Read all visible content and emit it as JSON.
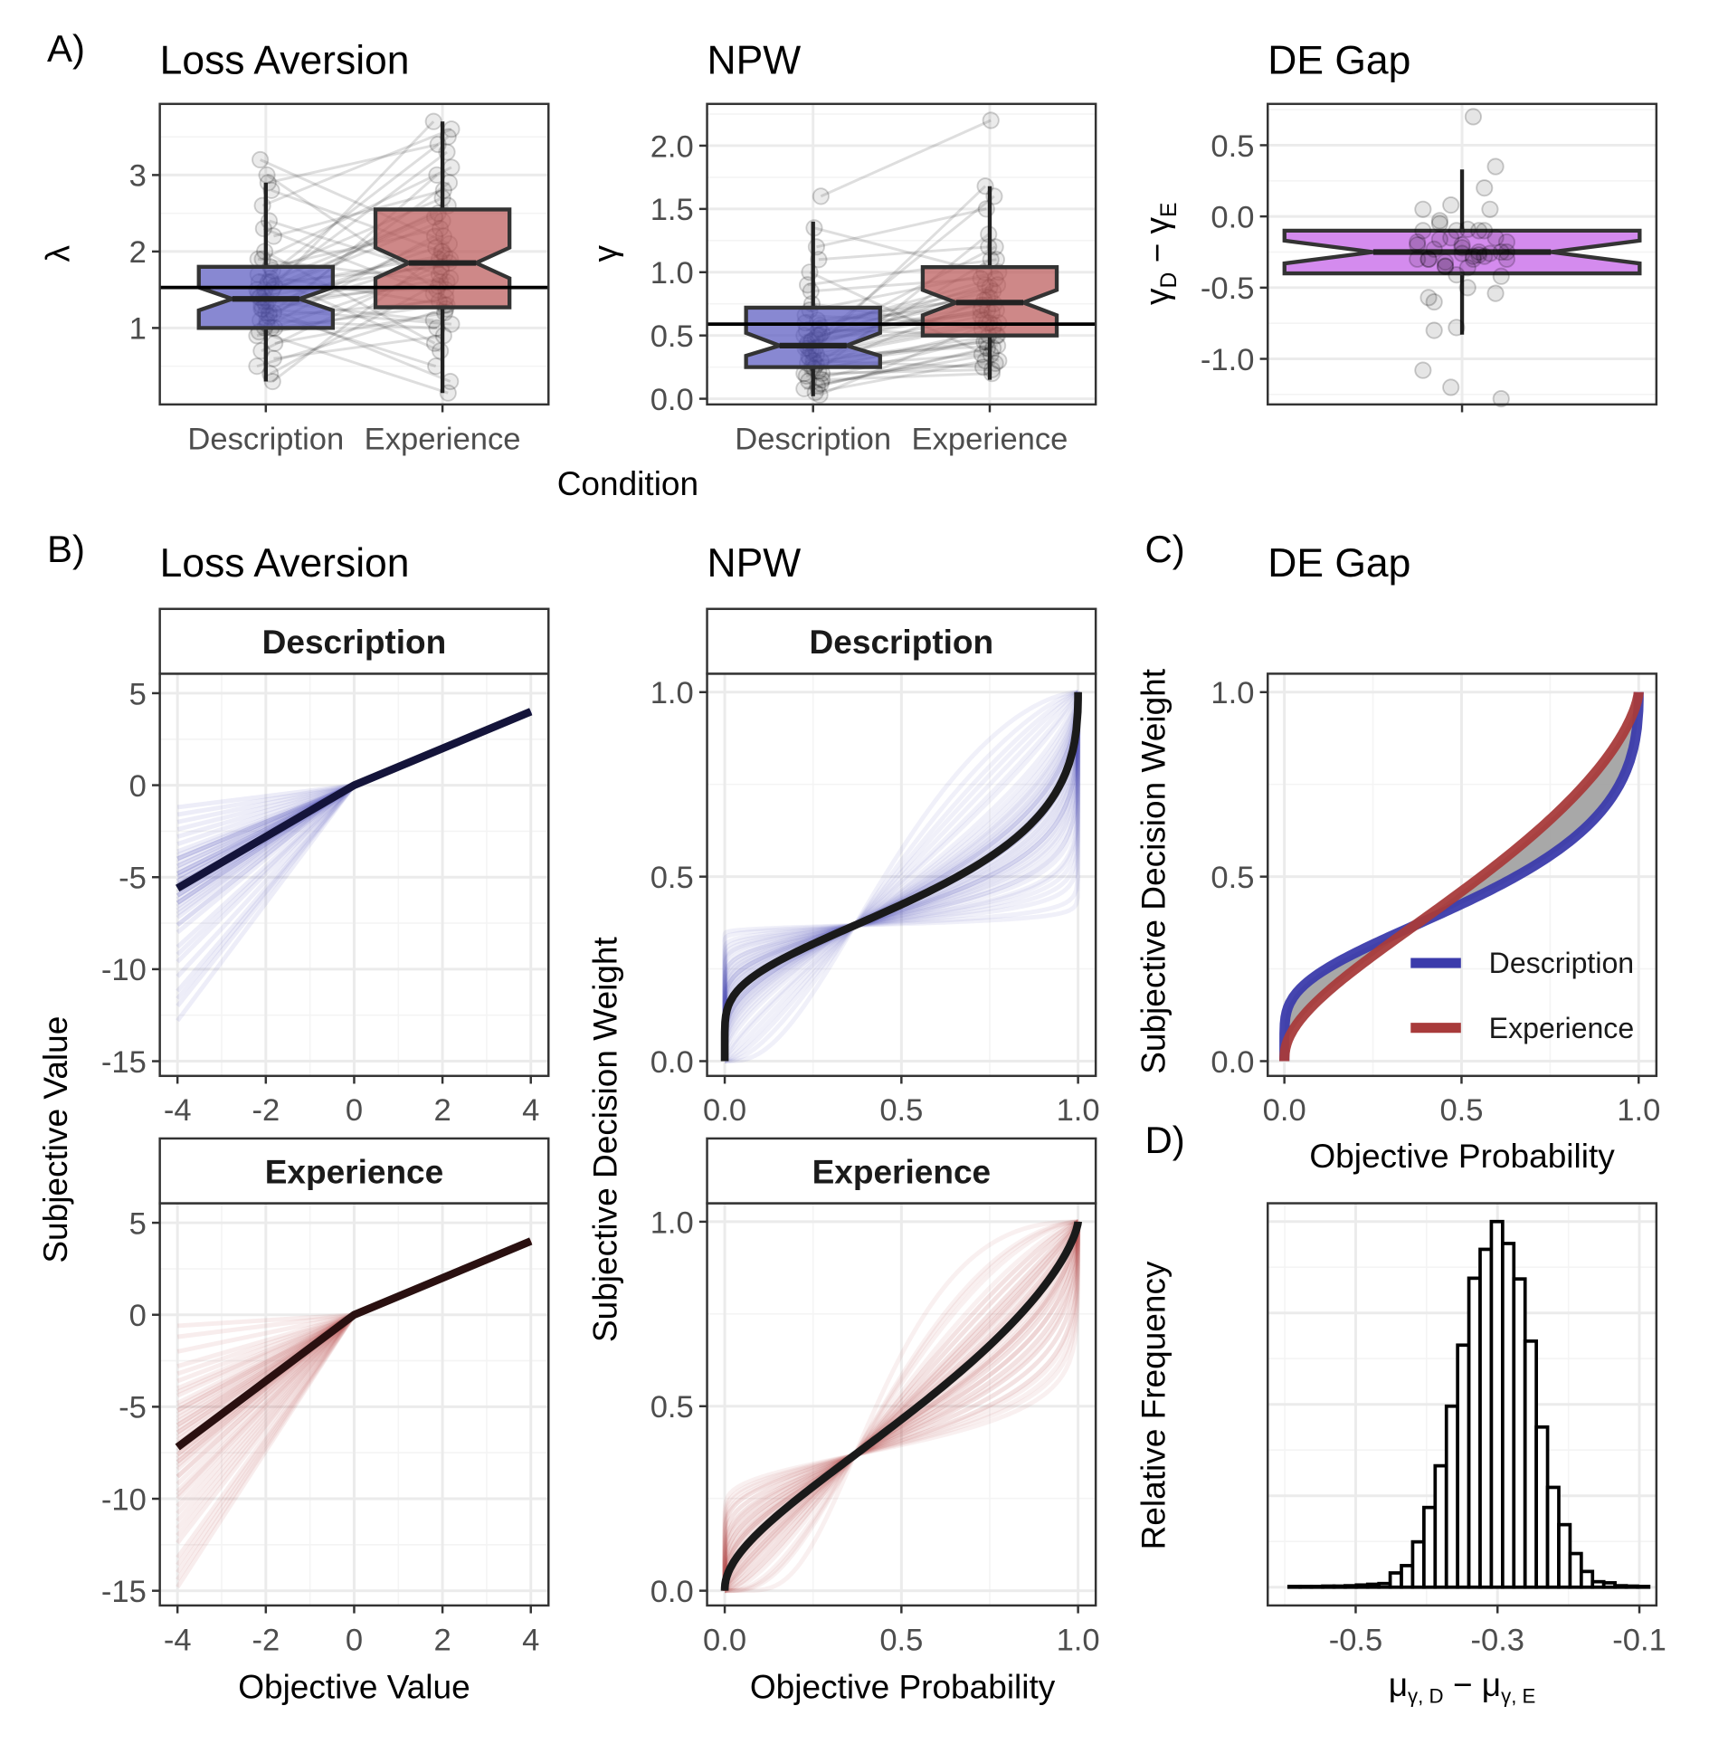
{
  "panel_labels": {
    "a": "A)",
    "b": "B)",
    "c": "C)",
    "d": "D)"
  },
  "chart_data": [
    {
      "id": "A1",
      "type": "box",
      "title": "Loss Aversion",
      "xlabel": "Condition",
      "ylabel": "λ",
      "categories": [
        "Description",
        "Experience"
      ],
      "ylim": [
        0,
        3.93
      ],
      "yticks": [
        1,
        2,
        3
      ],
      "yticklabels": [
        "1",
        "2",
        "3"
      ],
      "hline": 1.53,
      "boxes": [
        {
          "category": "Description",
          "color": "#5a5ac0",
          "whisker_low": 0.3,
          "q1": 1.0,
          "median": 1.38,
          "q3": 1.8,
          "whisker_high": 2.9,
          "notch": [
            1.23,
            1.53
          ]
        },
        {
          "category": "Experience",
          "color": "#bb5a5a",
          "whisker_low": 0.15,
          "q1": 1.27,
          "median": 1.85,
          "q3": 2.55,
          "whisker_high": 3.7,
          "notch": [
            1.65,
            2.05
          ]
        }
      ],
      "participants": [
        [
          1.2,
          1.9
        ],
        [
          1.5,
          2.4
        ],
        [
          0.9,
          1.4
        ],
        [
          3.2,
          2.1
        ],
        [
          1.4,
          3.7
        ],
        [
          1.1,
          1.0
        ],
        [
          0.4,
          1.6
        ],
        [
          2.2,
          2.8
        ],
        [
          1.7,
          1.3
        ],
        [
          1.3,
          0.3
        ],
        [
          1.0,
          2.2
        ],
        [
          2.9,
          3.4
        ],
        [
          1.6,
          1.8
        ],
        [
          0.8,
          1.2
        ],
        [
          1.4,
          2.6
        ],
        [
          1.9,
          3.1
        ],
        [
          1.2,
          0.5
        ],
        [
          2.4,
          1.7
        ],
        [
          0.3,
          2.0
        ],
        [
          1.5,
          1.5
        ],
        [
          1.1,
          2.9
        ],
        [
          1.35,
          1.1
        ],
        [
          3.0,
          1.5
        ],
        [
          1.8,
          2.3
        ],
        [
          0.6,
          0.9
        ],
        [
          1.45,
          3.3
        ],
        [
          1.25,
          1.65
        ],
        [
          2.0,
          0.8
        ],
        [
          1.6,
          2.5
        ],
        [
          1.0,
          1.75
        ],
        [
          1.55,
          1.95
        ],
        [
          0.95,
          0.15
        ],
        [
          2.6,
          3.6
        ],
        [
          1.3,
          2.05
        ],
        [
          1.15,
          1.35
        ],
        [
          1.75,
          2.7
        ],
        [
          0.5,
          1.25
        ],
        [
          1.4,
          1.85
        ],
        [
          2.3,
          1.45
        ],
        [
          1.05,
          3.0
        ],
        [
          1.65,
          0.7
        ],
        [
          1.2,
          2.2
        ],
        [
          1.9,
          1.6
        ],
        [
          0.7,
          1.9
        ],
        [
          1.5,
          2.45
        ],
        [
          1.35,
          1.55
        ],
        [
          2.8,
          2.0
        ],
        [
          1.0,
          1.3
        ],
        [
          1.6,
          3.5
        ],
        [
          1.25,
          1.05
        ]
      ]
    },
    {
      "id": "A2",
      "type": "box",
      "title": "NPW",
      "xlabel": "Condition",
      "ylabel": "γ",
      "categories": [
        "Description",
        "Experience"
      ],
      "ylim": [
        -0.045,
        2.33
      ],
      "yticks": [
        0,
        0.5,
        1,
        1.5,
        2
      ],
      "yticklabels": [
        "0.0",
        "0.5",
        "1.0",
        "1.5",
        "2.0"
      ],
      "hline": 0.59,
      "boxes": [
        {
          "category": "Description",
          "color": "#5a5ac0",
          "whisker_low": 0.02,
          "q1": 0.25,
          "median": 0.42,
          "q3": 0.72,
          "whisker_high": 1.4,
          "notch": [
            0.34,
            0.52
          ]
        },
        {
          "category": "Experience",
          "color": "#bb5a5a",
          "whisker_low": 0.15,
          "q1": 0.5,
          "median": 0.76,
          "q3": 1.04,
          "whisker_high": 1.68,
          "notch": [
            0.66,
            0.86
          ]
        }
      ],
      "participants": [
        [
          0.35,
          0.6
        ],
        [
          0.5,
          0.8
        ],
        [
          0.2,
          0.55
        ],
        [
          0.9,
          1.1
        ],
        [
          0.45,
          0.7
        ],
        [
          0.3,
          0.45
        ],
        [
          0.1,
          0.4
        ],
        [
          1.6,
          2.2
        ],
        [
          0.6,
          0.75
        ],
        [
          0.4,
          0.9
        ],
        [
          0.25,
          0.35
        ],
        [
          0.05,
          0.3
        ],
        [
          0.55,
          0.5
        ],
        [
          0.15,
          0.2
        ],
        [
          0.42,
          1.2
        ],
        [
          0.7,
          1.0
        ],
        [
          0.3,
          0.25
        ],
        [
          1.2,
          1.5
        ],
        [
          0.03,
          0.6
        ],
        [
          0.5,
          0.85
        ],
        [
          0.28,
          0.5
        ],
        [
          0.38,
          0.65
        ],
        [
          1.35,
          1.0
        ],
        [
          0.62,
          0.8
        ],
        [
          0.12,
          0.35
        ],
        [
          0.4,
          1.6
        ],
        [
          0.33,
          0.42
        ],
        [
          0.75,
          0.55
        ],
        [
          0.48,
          0.9
        ],
        [
          0.22,
          1.3
        ],
        [
          0.52,
          0.68
        ],
        [
          0.18,
          0.28
        ],
        [
          1.0,
          0.3
        ],
        [
          0.36,
          0.62
        ],
        [
          0.27,
          0.45
        ],
        [
          0.58,
          0.88
        ],
        [
          0.08,
          0.4
        ],
        [
          0.44,
          0.7
        ],
        [
          0.85,
          0.95
        ],
        [
          0.24,
          0.78
        ],
        [
          0.5,
          0.7
        ],
        [
          0.3,
          1.1
        ],
        [
          0.66,
          0.58
        ],
        [
          0.14,
          0.5
        ],
        [
          0.46,
          0.74
        ],
        [
          0.4,
          1.68
        ],
        [
          1.1,
          1.2
        ],
        [
          0.2,
          0.23
        ],
        [
          0.54,
          0.95
        ],
        [
          0.32,
          0.6
        ]
      ]
    },
    {
      "id": "A3",
      "type": "box",
      "title": "DE Gap",
      "ylabel": [
        "γ",
        "D",
        " − γ",
        "E"
      ],
      "ylim": [
        -1.32,
        0.79
      ],
      "yticks": [
        -1,
        -0.5,
        0,
        0.5
      ],
      "yticklabels": [
        "-1.0",
        "-0.5",
        "0.0",
        "0.5"
      ],
      "boxes": [
        {
          "color": "#c45ee8",
          "whisker_low": -0.83,
          "q1": -0.4,
          "median": -0.25,
          "q3": -0.1,
          "whisker_high": 0.33,
          "notch": [
            -0.33,
            -0.17
          ]
        }
      ]
    },
    {
      "id": "B1",
      "type": "line",
      "title": "Loss Aversion",
      "xlabel": "Objective Value",
      "ylabel": "Subjective Value",
      "xlim": [
        -4.4,
        4.4
      ],
      "ylim": [
        -15.8,
        6.06
      ],
      "xticks": [
        -4,
        -2,
        0,
        2,
        4
      ],
      "xticklabels": [
        "-4",
        "-2",
        "0",
        "2",
        "4"
      ],
      "yticks": [
        5,
        0,
        -5,
        -10,
        -15
      ],
      "yticklabels": [
        "5",
        "0",
        "-5",
        "-10",
        "-15"
      ],
      "facets": [
        {
          "strip": "Description",
          "mean_lambda": 1.4,
          "color": "#3c3cb4",
          "mean_color": "#14143a"
        },
        {
          "strip": "Experience",
          "mean_lambda": 1.8,
          "color": "#b43c3c",
          "mean_color": "#2a1010"
        }
      ]
    },
    {
      "id": "B2",
      "type": "line",
      "title": "NPW",
      "xlabel": "Objective Probability",
      "ylabel": "Subjective Decision Weight",
      "xlim": [
        -0.05,
        1.05
      ],
      "ylim": [
        -0.04,
        1.05
      ],
      "xticks": [
        0,
        0.5,
        1
      ],
      "xticklabels": [
        "0.0",
        "0.5",
        "1.0"
      ],
      "yticks": [
        0,
        0.5,
        1
      ],
      "yticklabels": [
        "0.0",
        "0.5",
        "1.0"
      ],
      "facets": [
        {
          "strip": "Description",
          "mean_gamma": 0.42,
          "color": "#3c3cb4",
          "mean_color": "#1a1a1a"
        },
        {
          "strip": "Experience",
          "mean_gamma": 0.72,
          "color": "#b43c3c",
          "mean_color": "#1a1a1a"
        }
      ]
    },
    {
      "id": "C",
      "type": "line",
      "title": "DE Gap",
      "xlabel": "Objective Probability",
      "ylabel": "Subjective Decision Weight",
      "xlim": [
        -0.047,
        1.05
      ],
      "ylim": [
        -0.04,
        1.05
      ],
      "xticks": [
        0,
        0.5,
        1
      ],
      "xticklabels": [
        "0.0",
        "0.5",
        "1.0"
      ],
      "yticks": [
        0,
        0.5,
        1
      ],
      "yticklabels": [
        "0.0",
        "0.5",
        "1.0"
      ],
      "gap_fill": "#999999",
      "legend": "bottom-right",
      "series": [
        {
          "name": "Description",
          "gamma": 0.43,
          "color": "#3b3bab"
        },
        {
          "name": "Experience",
          "gamma": 0.69,
          "color": "#a83b3b"
        }
      ]
    },
    {
      "id": "D",
      "type": "histogram",
      "xlabel": [
        "μ",
        "γ, D",
        " − μ",
        "γ, E"
      ],
      "ylabel": "Relative Frequency",
      "xlim": [
        -0.624,
        -0.076
      ],
      "ylim": [
        -0.05,
        1.05
      ],
      "xticks": [
        -0.5,
        -0.3,
        -0.1
      ],
      "xticklabels": [
        "-0.5",
        "-0.3",
        "-0.1"
      ],
      "bin_start": -0.594,
      "bin_width": 0.01585,
      "values": [
        0.002,
        0.002,
        0.002,
        0.003,
        0.003,
        0.004,
        0.006,
        0.008,
        0.01,
        0.039,
        0.059,
        0.124,
        0.218,
        0.332,
        0.495,
        0.662,
        0.845,
        0.924,
        1.0,
        0.94,
        0.843,
        0.673,
        0.438,
        0.273,
        0.171,
        0.092,
        0.043,
        0.015,
        0.012,
        0.004,
        0.003,
        0.002
      ]
    }
  ]
}
